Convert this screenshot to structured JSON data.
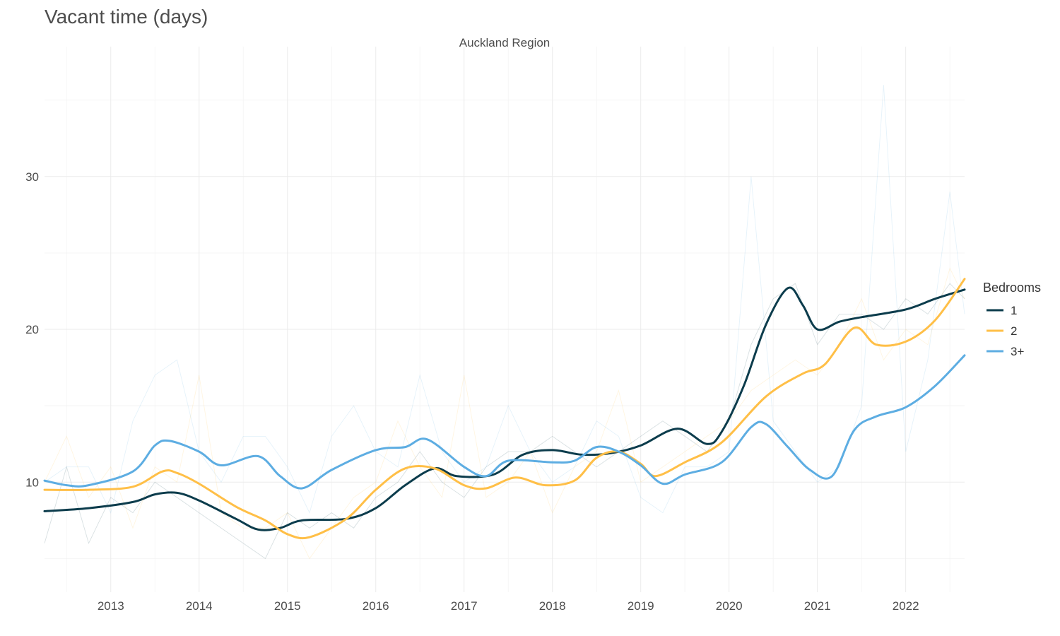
{
  "title": "Vacant time (days)",
  "chart_data": {
    "type": "line",
    "title": "Vacant time (days)",
    "facet_label": "Auckland Region",
    "xlabel": "",
    "ylabel": "",
    "x_start": "2012-04",
    "x_end": "2022-09",
    "ylim": [
      2.8,
      38.5
    ],
    "y_ticks": [
      10,
      20,
      30
    ],
    "x_ticks": [
      {
        "label": "2013",
        "date": "2013-01"
      },
      {
        "label": "2014",
        "date": "2014-01"
      },
      {
        "label": "2015",
        "date": "2015-01"
      },
      {
        "label": "2016",
        "date": "2016-01"
      },
      {
        "label": "2017",
        "date": "2017-01"
      },
      {
        "label": "2018",
        "date": "2018-01"
      },
      {
        "label": "2019",
        "date": "2019-01"
      },
      {
        "label": "2020",
        "date": "2020-01"
      },
      {
        "label": "2021",
        "date": "2021-01"
      },
      {
        "label": "2022",
        "date": "2022-01"
      }
    ],
    "grid": true,
    "legend_title": "Bedrooms",
    "legend_position": "right",
    "series": [
      {
        "name": "1",
        "color": "#0c3c4c",
        "smoothed": [
          [
            "2012-04",
            8.1
          ],
          [
            "2012-10",
            8.3
          ],
          [
            "2013-04",
            8.7
          ],
          [
            "2013-07",
            9.2
          ],
          [
            "2013-10",
            9.3
          ],
          [
            "2014-01",
            8.8
          ],
          [
            "2014-06",
            7.6
          ],
          [
            "2014-09",
            6.9
          ],
          [
            "2014-12",
            7.0
          ],
          [
            "2015-03",
            7.5
          ],
          [
            "2015-09",
            7.6
          ],
          [
            "2016-01",
            8.3
          ],
          [
            "2016-05",
            9.8
          ],
          [
            "2016-09",
            10.9
          ],
          [
            "2016-12",
            10.4
          ],
          [
            "2017-05",
            10.5
          ],
          [
            "2017-09",
            11.8
          ],
          [
            "2018-01",
            12.1
          ],
          [
            "2018-05",
            11.8
          ],
          [
            "2018-09",
            11.9
          ],
          [
            "2019-01",
            12.4
          ],
          [
            "2019-06",
            13.5
          ],
          [
            "2019-10",
            12.5
          ],
          [
            "2019-12",
            13.3
          ],
          [
            "2020-03",
            16.3
          ],
          [
            "2020-06",
            20.3
          ],
          [
            "2020-09",
            22.7
          ],
          [
            "2020-11",
            21.6
          ],
          [
            "2021-01",
            20.0
          ],
          [
            "2021-04",
            20.5
          ],
          [
            "2021-07",
            20.8
          ],
          [
            "2022-01",
            21.3
          ],
          [
            "2022-05",
            22.0
          ],
          [
            "2022-09",
            22.6
          ]
        ],
        "raw": [
          [
            "2012-04",
            6
          ],
          [
            "2012-07",
            11
          ],
          [
            "2012-10",
            6
          ],
          [
            "2013-01",
            9
          ],
          [
            "2013-04",
            8
          ],
          [
            "2013-07",
            10
          ],
          [
            "2013-10",
            9
          ],
          [
            "2014-01",
            8
          ],
          [
            "2014-04",
            7
          ],
          [
            "2014-07",
            6
          ],
          [
            "2014-10",
            5
          ],
          [
            "2015-01",
            8
          ],
          [
            "2015-04",
            7
          ],
          [
            "2015-07",
            8
          ],
          [
            "2015-10",
            7
          ],
          [
            "2016-01",
            9
          ],
          [
            "2016-04",
            10
          ],
          [
            "2016-07",
            12
          ],
          [
            "2016-10",
            10
          ],
          [
            "2017-01",
            9
          ],
          [
            "2017-04",
            11
          ],
          [
            "2017-07",
            12
          ],
          [
            "2017-10",
            12
          ],
          [
            "2018-01",
            13
          ],
          [
            "2018-04",
            12
          ],
          [
            "2018-07",
            11
          ],
          [
            "2018-10",
            12
          ],
          [
            "2019-01",
            13
          ],
          [
            "2019-04",
            14
          ],
          [
            "2019-07",
            13
          ],
          [
            "2019-10",
            12
          ],
          [
            "2020-01",
            14
          ],
          [
            "2020-04",
            19
          ],
          [
            "2020-07",
            22
          ],
          [
            "2020-10",
            23
          ],
          [
            "2021-01",
            19
          ],
          [
            "2021-04",
            21
          ],
          [
            "2021-07",
            21
          ],
          [
            "2021-10",
            20
          ],
          [
            "2022-01",
            22
          ],
          [
            "2022-04",
            21
          ],
          [
            "2022-07",
            23
          ],
          [
            "2022-09",
            22
          ]
        ]
      },
      {
        "name": "2",
        "color": "#ffbf47",
        "smoothed": [
          [
            "2012-04",
            9.5
          ],
          [
            "2012-10",
            9.5
          ],
          [
            "2013-04",
            9.7
          ],
          [
            "2013-08",
            10.7
          ],
          [
            "2013-10",
            10.6
          ],
          [
            "2014-01",
            9.9
          ],
          [
            "2014-06",
            8.4
          ],
          [
            "2014-10",
            7.5
          ],
          [
            "2015-01",
            6.6
          ],
          [
            "2015-04",
            6.4
          ],
          [
            "2015-09",
            7.6
          ],
          [
            "2016-01",
            9.5
          ],
          [
            "2016-05",
            10.9
          ],
          [
            "2016-09",
            10.9
          ],
          [
            "2017-01",
            9.8
          ],
          [
            "2017-04",
            9.6
          ],
          [
            "2017-08",
            10.3
          ],
          [
            "2017-12",
            9.8
          ],
          [
            "2018-04",
            10.1
          ],
          [
            "2018-07",
            11.6
          ],
          [
            "2018-10",
            12.0
          ],
          [
            "2019-01",
            11.2
          ],
          [
            "2019-03",
            10.4
          ],
          [
            "2019-07",
            11.3
          ],
          [
            "2019-12",
            12.6
          ],
          [
            "2020-06",
            15.6
          ],
          [
            "2020-11",
            17.1
          ],
          [
            "2021-02",
            17.7
          ],
          [
            "2021-06",
            20.1
          ],
          [
            "2021-09",
            19.0
          ],
          [
            "2022-01",
            19.2
          ],
          [
            "2022-05",
            20.6
          ],
          [
            "2022-09",
            23.3
          ]
        ],
        "raw": [
          [
            "2012-04",
            10
          ],
          [
            "2012-07",
            13
          ],
          [
            "2012-10",
            9
          ],
          [
            "2013-01",
            11
          ],
          [
            "2013-04",
            7
          ],
          [
            "2013-07",
            11
          ],
          [
            "2013-10",
            10
          ],
          [
            "2014-01",
            17
          ],
          [
            "2014-04",
            8
          ],
          [
            "2014-07",
            7
          ],
          [
            "2014-10",
            7
          ],
          [
            "2015-01",
            8
          ],
          [
            "2015-04",
            5
          ],
          [
            "2015-07",
            7
          ],
          [
            "2015-10",
            9
          ],
          [
            "2016-01",
            10
          ],
          [
            "2016-04",
            14
          ],
          [
            "2016-07",
            11
          ],
          [
            "2016-10",
            9
          ],
          [
            "2017-01",
            17
          ],
          [
            "2017-04",
            9
          ],
          [
            "2017-07",
            10
          ],
          [
            "2017-10",
            12
          ],
          [
            "2018-01",
            8
          ],
          [
            "2018-04",
            11
          ],
          [
            "2018-07",
            12
          ],
          [
            "2018-10",
            16
          ],
          [
            "2019-01",
            10
          ],
          [
            "2019-04",
            11
          ],
          [
            "2019-07",
            12
          ],
          [
            "2019-10",
            13
          ],
          [
            "2020-01",
            14
          ],
          [
            "2020-04",
            16
          ],
          [
            "2020-07",
            17
          ],
          [
            "2020-10",
            18
          ],
          [
            "2021-01",
            17
          ],
          [
            "2021-04",
            19
          ],
          [
            "2021-07",
            22
          ],
          [
            "2021-10",
            18
          ],
          [
            "2022-01",
            20
          ],
          [
            "2022-04",
            19
          ],
          [
            "2022-07",
            24
          ],
          [
            "2022-09",
            22
          ]
        ]
      },
      {
        "name": "3+",
        "color": "#5dade2",
        "smoothed": [
          [
            "2012-04",
            10.1
          ],
          [
            "2012-07",
            9.8
          ],
          [
            "2012-10",
            9.8
          ],
          [
            "2013-04",
            10.7
          ],
          [
            "2013-07",
            12.4
          ],
          [
            "2013-09",
            12.7
          ],
          [
            "2014-01",
            12.0
          ],
          [
            "2014-04",
            11.1
          ],
          [
            "2014-09",
            11.7
          ],
          [
            "2014-12",
            10.4
          ],
          [
            "2015-03",
            9.6
          ],
          [
            "2015-07",
            10.8
          ],
          [
            "2016-01",
            12.1
          ],
          [
            "2016-05",
            12.3
          ],
          [
            "2016-08",
            12.8
          ],
          [
            "2017-01",
            11.0
          ],
          [
            "2017-04",
            10.4
          ],
          [
            "2017-07",
            11.4
          ],
          [
            "2018-01",
            11.3
          ],
          [
            "2018-04",
            11.4
          ],
          [
            "2018-07",
            12.3
          ],
          [
            "2018-10",
            12.0
          ],
          [
            "2019-01",
            11.1
          ],
          [
            "2019-04",
            9.9
          ],
          [
            "2019-07",
            10.5
          ],
          [
            "2019-12",
            11.3
          ],
          [
            "2020-04",
            13.6
          ],
          [
            "2020-06",
            13.8
          ],
          [
            "2020-09",
            12.3
          ],
          [
            "2020-12",
            10.8
          ],
          [
            "2021-03",
            10.4
          ],
          [
            "2021-06",
            13.4
          ],
          [
            "2021-09",
            14.3
          ],
          [
            "2022-01",
            14.9
          ],
          [
            "2022-05",
            16.3
          ],
          [
            "2022-09",
            18.3
          ]
        ],
        "raw": [
          [
            "2012-04",
            10
          ],
          [
            "2012-07",
            11
          ],
          [
            "2012-10",
            11
          ],
          [
            "2013-01",
            8
          ],
          [
            "2013-04",
            14
          ],
          [
            "2013-07",
            17
          ],
          [
            "2013-10",
            18
          ],
          [
            "2014-01",
            12
          ],
          [
            "2014-04",
            10
          ],
          [
            "2014-07",
            13
          ],
          [
            "2014-10",
            13
          ],
          [
            "2015-01",
            11
          ],
          [
            "2015-04",
            8
          ],
          [
            "2015-07",
            13
          ],
          [
            "2015-10",
            15
          ],
          [
            "2016-01",
            12
          ],
          [
            "2016-04",
            11
          ],
          [
            "2016-07",
            17
          ],
          [
            "2016-10",
            12
          ],
          [
            "2017-01",
            10
          ],
          [
            "2017-04",
            11
          ],
          [
            "2017-07",
            15
          ],
          [
            "2017-10",
            12
          ],
          [
            "2018-01",
            10
          ],
          [
            "2018-04",
            11
          ],
          [
            "2018-07",
            14
          ],
          [
            "2018-10",
            13
          ],
          [
            "2019-01",
            9
          ],
          [
            "2019-04",
            8
          ],
          [
            "2019-07",
            11
          ],
          [
            "2019-10",
            11
          ],
          [
            "2020-01",
            12
          ],
          [
            "2020-04",
            30
          ],
          [
            "2020-07",
            14
          ],
          [
            "2020-10",
            12
          ],
          [
            "2021-01",
            10
          ],
          [
            "2021-04",
            11
          ],
          [
            "2021-07",
            15
          ],
          [
            "2021-10",
            36
          ],
          [
            "2022-01",
            12
          ],
          [
            "2022-04",
            18
          ],
          [
            "2022-07",
            29
          ],
          [
            "2022-09",
            21
          ]
        ]
      }
    ]
  }
}
